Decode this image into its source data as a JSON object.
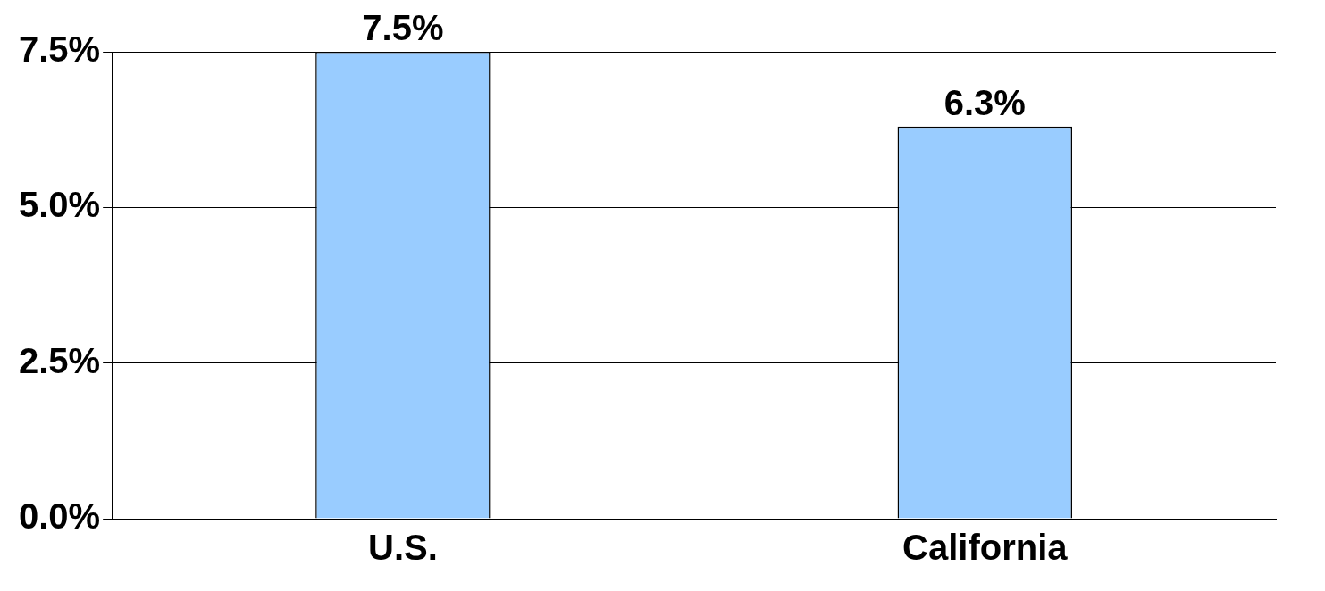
{
  "chart_data": {
    "type": "bar",
    "categories": [
      "U.S.",
      "California"
    ],
    "values": [
      7.5,
      6.3
    ],
    "color": "#99ccff",
    "ylim": [
      0,
      7.5
    ],
    "yticks": [
      {
        "value": 0,
        "label": "0.0%"
      },
      {
        "value": 2.5,
        "label": "2.5%"
      },
      {
        "value": 5,
        "label": "5.0%"
      },
      {
        "value": 7.5,
        "label": "7.5%"
      }
    ],
    "grid": "y",
    "data_labels": true,
    "value_labels": [
      "7.5%",
      "6.3%"
    ]
  }
}
